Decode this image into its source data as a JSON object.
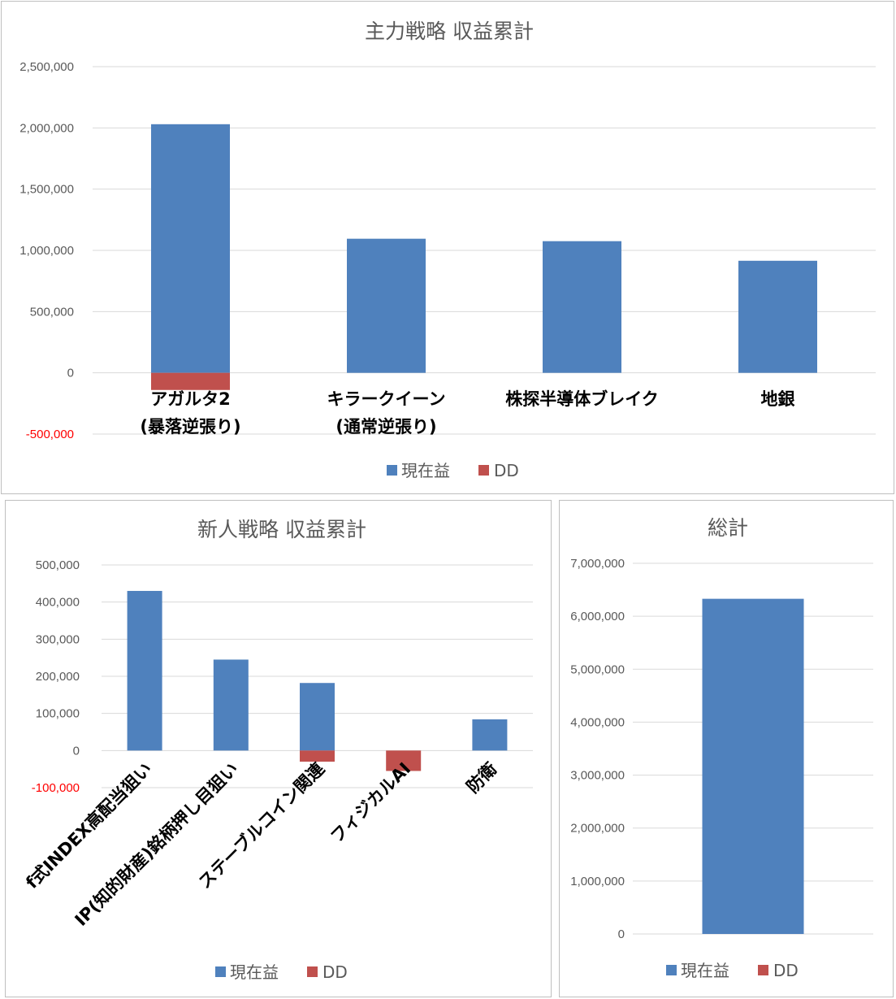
{
  "colors": {
    "profit": "#4f81bd",
    "dd": "#c0504d",
    "grid": "#d9d9d9",
    "negative_tick": "#ff0000"
  },
  "legend": {
    "profit": "現在益",
    "dd": "DD"
  },
  "chart_data": [
    {
      "id": "main",
      "type": "bar",
      "title": "主力戦略 収益累計",
      "categories": [
        [
          "アガルタ2",
          "(暴落逆張り)"
        ],
        [
          "キラークイーン",
          "(通常逆張り)"
        ],
        [
          "株探半導体ブレイク"
        ],
        [
          "地銀"
        ]
      ],
      "series": [
        {
          "name": "現在益",
          "values": [
            2030000,
            1095000,
            1075000,
            915000
          ]
        },
        {
          "name": "DD",
          "values": [
            -140000,
            0,
            0,
            0
          ]
        }
      ],
      "ylim": [
        -500000,
        2500000
      ],
      "yticks": [
        "2,500,000",
        "2,000,000",
        "1,500,000",
        "1,000,000",
        "500,000",
        "0",
        "-500,000"
      ],
      "ytick_values": [
        2500000,
        2000000,
        1500000,
        1000000,
        500000,
        0,
        -500000
      ],
      "grid": true,
      "legend_position": "bottom"
    },
    {
      "id": "new",
      "type": "bar",
      "title": "新人戦略 収益累計",
      "categories": [
        [
          "f式INDEX高配当狙い"
        ],
        [
          "IP(知的財産)銘柄押し目狙い"
        ],
        [
          "ステーブルコイン関連"
        ],
        [
          "フィジカルAI"
        ],
        [
          "防衛"
        ]
      ],
      "series": [
        {
          "name": "現在益",
          "values": [
            430000,
            245000,
            182000,
            0,
            84000
          ]
        },
        {
          "name": "DD",
          "values": [
            0,
            0,
            -30000,
            -55000,
            0
          ]
        }
      ],
      "ylim": [
        -100000,
        500000
      ],
      "yticks": [
        "500,000",
        "400,000",
        "300,000",
        "200,000",
        "100,000",
        "0",
        "-100,000"
      ],
      "ytick_values": [
        500000,
        400000,
        300000,
        200000,
        100000,
        0,
        -100000
      ],
      "grid": true,
      "legend_position": "bottom"
    },
    {
      "id": "total",
      "type": "bar",
      "title": "総計",
      "categories": [
        [
          ""
        ]
      ],
      "series": [
        {
          "name": "現在益",
          "values": [
            6330000
          ]
        },
        {
          "name": "DD",
          "values": [
            0
          ]
        }
      ],
      "ylim": [
        0,
        7000000
      ],
      "yticks": [
        "7,000,000",
        "6,000,000",
        "5,000,000",
        "4,000,000",
        "3,000,000",
        "2,000,000",
        "1,000,000",
        "0"
      ],
      "ytick_values": [
        7000000,
        6000000,
        5000000,
        4000000,
        3000000,
        2000000,
        1000000,
        0
      ],
      "grid": true,
      "legend_position": "bottom"
    }
  ]
}
